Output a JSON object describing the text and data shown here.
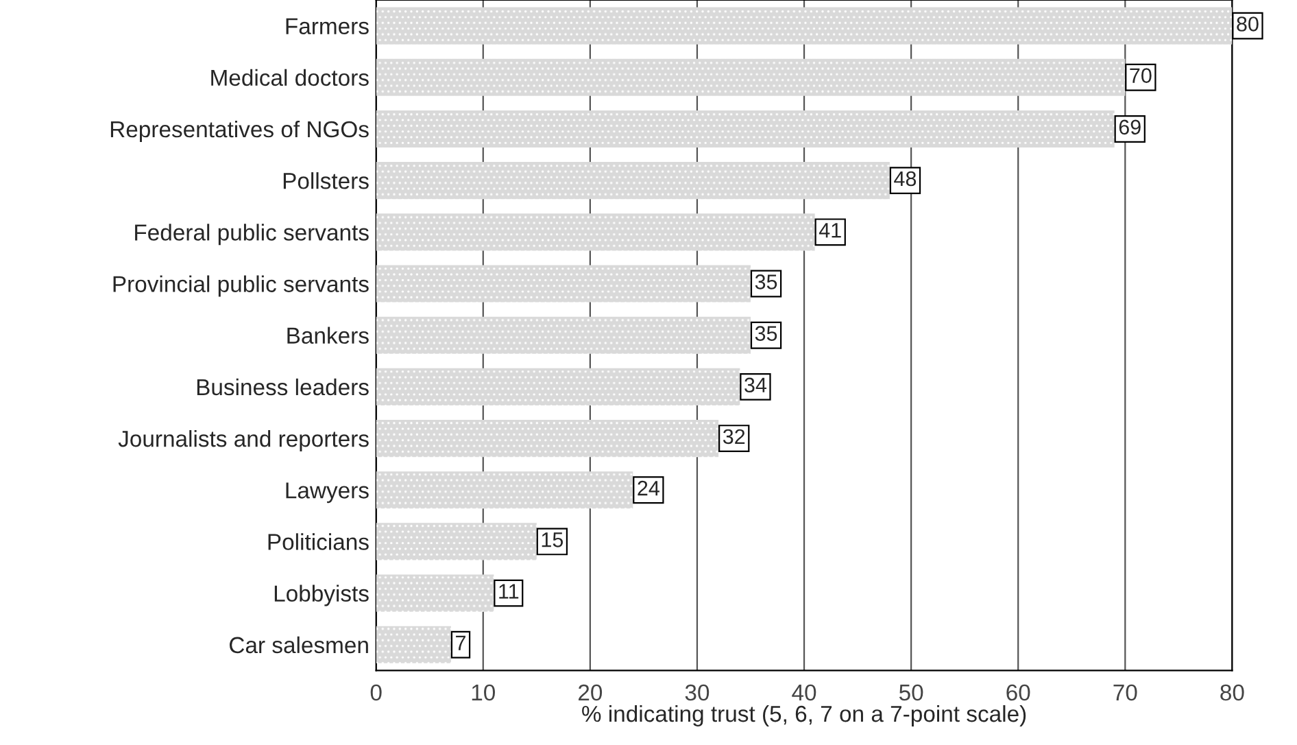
{
  "chart_data": {
    "type": "bar",
    "orientation": "horizontal",
    "xlabel": "% indicating trust (5, 6, 7 on a 7-point scale)",
    "categories": [
      "Farmers",
      "Medical doctors",
      "Representatives of NGOs",
      "Pollsters",
      "Federal public servants",
      "Provincial public servants",
      "Bankers",
      "Business leaders",
      "Journalists and reporters",
      "Lawyers",
      "Politicians",
      "Lobbyists",
      "Car salesmen"
    ],
    "values": [
      80,
      70,
      69,
      48,
      41,
      35,
      35,
      34,
      32,
      24,
      15,
      11,
      7
    ],
    "color": "#d9d9d9",
    "xlim": [
      0,
      80
    ],
    "xticks": [
      0,
      10,
      20,
      30,
      40,
      50,
      60,
      70,
      80
    ],
    "grid": "x",
    "data_labels": true
  }
}
